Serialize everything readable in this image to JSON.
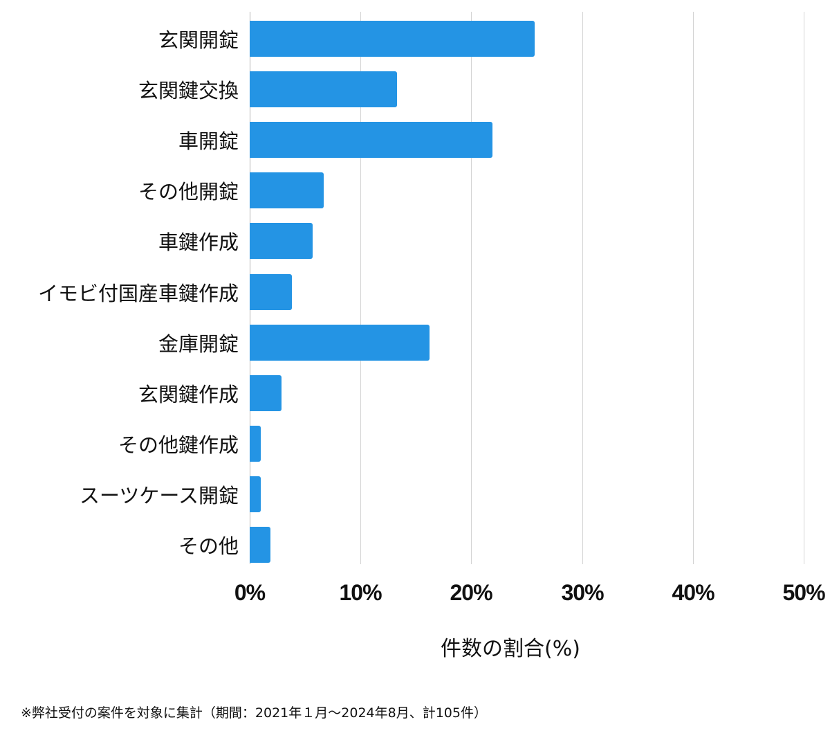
{
  "chart_data": {
    "type": "bar",
    "orientation": "horizontal",
    "title": "",
    "xlabel": "件数の割合(%)",
    "ylabel": "",
    "xlim": [
      0,
      50
    ],
    "x_ticks": [
      "0%",
      "10%",
      "20%",
      "30%",
      "40%",
      "50%"
    ],
    "grid": true,
    "legend": null,
    "color": "#2494e4",
    "categories": [
      "玄関開錠",
      "玄関鍵交換",
      "車開錠",
      "その他開錠",
      "車鍵作成",
      "イモビ付国産車鍵作成",
      "金庫開錠",
      "玄関鍵作成",
      "その他鍵作成",
      "スーツケース開錠",
      "その他"
    ],
    "values": [
      25.7,
      13.3,
      21.9,
      6.7,
      5.7,
      3.8,
      16.2,
      2.9,
      1.0,
      1.0,
      1.9
    ],
    "footnote": "※弊社受付の案件を対象に集計（期間：2021年１月～2024年8月、計105件）"
  },
  "labels": {
    "x_title": "件数の割合(%)",
    "footnote": "※弊社受付の案件を対象に集計（期間：2021年１月～2024年8月、計105件）"
  }
}
